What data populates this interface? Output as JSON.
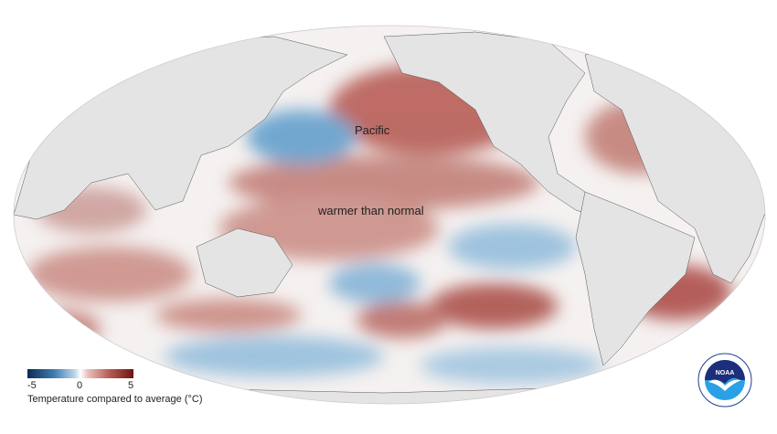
{
  "map": {
    "labels": {
      "pacific": "Pacific",
      "warmer": "warmer than normal"
    },
    "colors": {
      "land": "#e4e4e4",
      "warm": "#a9453f",
      "cool": "#4f8fc2",
      "neutral": "#f7f3f2"
    }
  },
  "legend": {
    "min_label": "-5",
    "mid_label": "0",
    "max_label": "5",
    "title": "Temperature compared to average (°C)",
    "scale": {
      "min": -5,
      "max": 5,
      "low_color": "#0d2b52",
      "high_color": "#6d1512"
    }
  },
  "logo": {
    "text": "NOAA",
    "ring_text": "NATIONAL OCEANIC AND ATMOSPHERIC ADMINISTRATION · U.S. DEPARTMENT OF COMMERCE"
  }
}
